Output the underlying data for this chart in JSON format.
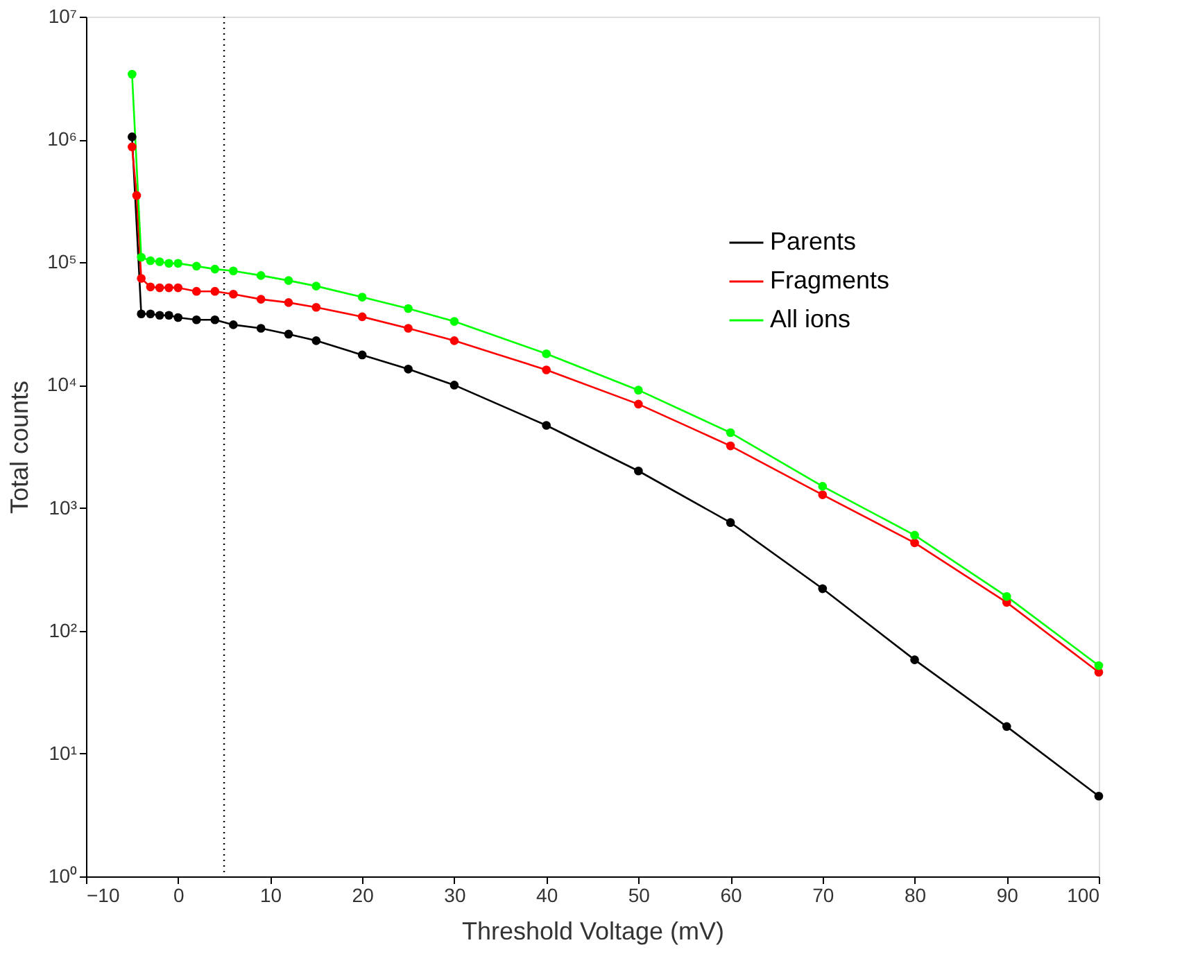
{
  "chart_data": {
    "type": "line",
    "xlabel": "Threshold Voltage (mV)",
    "ylabel": "Total counts",
    "log": "y",
    "marker": "circle",
    "line_style": "solid",
    "grid": false,
    "legend": "top right",
    "xlim": [
      -10,
      100
    ],
    "xticks": [
      -10,
      0,
      10,
      20,
      30,
      40,
      50,
      60,
      70,
      80,
      90,
      100
    ],
    "ylim": [
      1,
      10000000
    ],
    "yticks": [
      {
        "value": 1,
        "label": "10⁰"
      },
      {
        "value": 10,
        "label": "10¹"
      },
      {
        "value": 100,
        "label": "10²"
      },
      {
        "value": 1000,
        "label": "10³"
      },
      {
        "value": 10000,
        "label": "10⁴"
      },
      {
        "value": 100000,
        "label": "10⁵"
      },
      {
        "value": 1000000,
        "label": "10⁶"
      },
      {
        "value": 10000000,
        "label": "10⁷"
      }
    ],
    "ref_lines": [
      {
        "axis": "x",
        "value": 5,
        "line_style": "dotted",
        "color": "#000000"
      }
    ],
    "series": [
      {
        "name": "Parents",
        "color": "#000000",
        "x": [
          -5,
          -4,
          -3,
          -2,
          -1,
          0,
          2,
          4,
          6,
          9,
          12,
          15,
          20,
          25,
          30,
          40,
          50,
          60,
          70,
          80,
          90,
          100
        ],
        "values": [
          1050000,
          38000,
          38000,
          37000,
          37000,
          35500,
          34000,
          34000,
          31000,
          29000,
          26000,
          23000,
          17600,
          13500,
          10000,
          4700,
          2000,
          760,
          220,
          58,
          16.6,
          4.5
        ]
      },
      {
        "name": "Fragments",
        "color": "#ff0000",
        "x": [
          -5,
          -4.5,
          -4,
          -3,
          -2,
          -1,
          0,
          2,
          4,
          6,
          9,
          12,
          15,
          20,
          25,
          30,
          40,
          50,
          60,
          70,
          80,
          90,
          100
        ],
        "values": [
          870000,
          350000,
          74000,
          63000,
          62000,
          62000,
          62000,
          58000,
          58000,
          55000,
          50000,
          47000,
          43000,
          36000,
          29000,
          23000,
          13300,
          7000,
          3200,
          1280,
          520,
          170,
          46
        ]
      },
      {
        "name": "All ions",
        "color": "#00ff00",
        "x": [
          -5,
          -4,
          -3,
          -2,
          -1,
          0,
          2,
          4,
          6,
          9,
          12,
          15,
          20,
          25,
          30,
          40,
          50,
          60,
          70,
          80,
          90,
          100
        ],
        "values": [
          3400000,
          110000,
          103000,
          101000,
          98000,
          98000,
          93000,
          88000,
          85000,
          78000,
          71000,
          64000,
          52000,
          42000,
          33000,
          18000,
          9100,
          4100,
          1500,
          600,
          190,
          52
        ]
      }
    ]
  }
}
